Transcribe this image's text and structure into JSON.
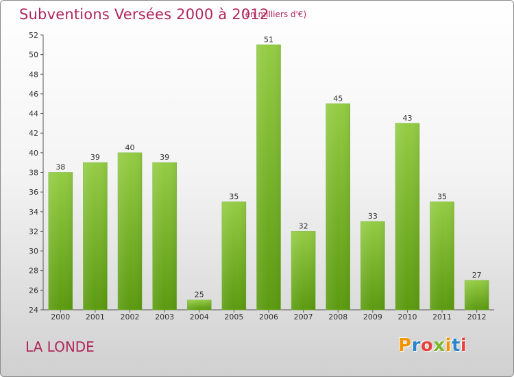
{
  "header": {
    "title": "Subventions Versées 2000 à 2012",
    "subtitle": "(en milliers d'€)"
  },
  "footer": {
    "commune": "LA LONDE",
    "logo": "Proxiti"
  },
  "colors": {
    "title": "#b0255a",
    "bar_top": "#94cc44",
    "bar_bottom": "#5b9a10",
    "logo_letters": [
      "#f29400",
      "#2a86c8",
      "#e8423f",
      "#7ab829",
      "#f29400",
      "#2a86c8",
      "#e8423f"
    ]
  },
  "chart_data": {
    "type": "bar",
    "title": "Subventions Versées 2000 à 2012",
    "subtitle": "(en milliers d'€)",
    "xlabel": "",
    "ylabel": "",
    "categories": [
      "2000",
      "2001",
      "2002",
      "2003",
      "2004",
      "2005",
      "2006",
      "2007",
      "2008",
      "2009",
      "2010",
      "2011",
      "2012"
    ],
    "values": [
      38,
      39,
      40,
      39,
      25,
      35,
      51,
      32,
      45,
      33,
      43,
      35,
      27
    ],
    "ylim": [
      24,
      52
    ],
    "yticks": [
      24,
      26,
      28,
      30,
      32,
      34,
      36,
      38,
      40,
      42,
      44,
      46,
      48,
      50,
      52
    ],
    "grid": false,
    "legend": "none"
  }
}
